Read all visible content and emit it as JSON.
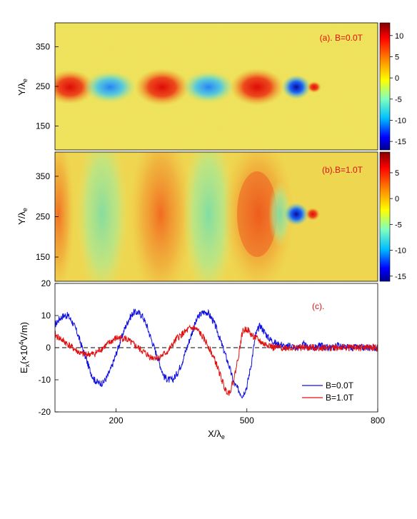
{
  "colors": {
    "field_background": "#f2e45a",
    "series_b0": "#1010e0",
    "series_b1": "#e01010",
    "panel_label": "#e01010",
    "colormap": [
      "#00008f",
      "#0000ff",
      "#00bfff",
      "#7fffbf",
      "#ffff00",
      "#ff7f00",
      "#ff0000",
      "#800000"
    ]
  },
  "panel_a": {
    "label": "(a). B=0.0T",
    "ylabel": "Y/λ",
    "ylabel_sub": "e",
    "yticks": [
      "350",
      "250",
      "150"
    ],
    "colorbar_ticks": [
      "10",
      "5",
      "0",
      "-5",
      "-10",
      "-15"
    ],
    "colorbar_range": [
      -17,
      13
    ]
  },
  "panel_b": {
    "label": "(b).B=1.0T",
    "ylabel": "Y/λ",
    "ylabel_sub": "e",
    "yticks": [
      "350",
      "250",
      "150"
    ],
    "colorbar_ticks": [
      "5",
      "0",
      "-5",
      "-10",
      "-15"
    ],
    "colorbar_range": [
      -16,
      9
    ]
  },
  "chart_data": {
    "type": "line",
    "label": "(c).",
    "xlabel": "X/λ",
    "xlabel_sub": "e",
    "ylabel_main": "E",
    "ylabel_sub": "x",
    "ylabel_paren": "(×10",
    "ylabel_exp": "4",
    "ylabel_unit": "V/m)",
    "xlim": [
      60,
      800
    ],
    "ylim": [
      -20,
      20
    ],
    "xticks": [
      200,
      500,
      800
    ],
    "yticks": [
      -20,
      -10,
      0,
      10,
      20
    ],
    "reference_line": 0,
    "legend_position": "bottom-right",
    "series": [
      {
        "name": "B=0.0T",
        "color": "#1010e0",
        "x": [
          60,
          70,
          80,
          90,
          100,
          110,
          120,
          130,
          140,
          150,
          160,
          170,
          180,
          190,
          200,
          210,
          220,
          230,
          240,
          250,
          260,
          270,
          280,
          290,
          300,
          310,
          320,
          330,
          340,
          350,
          360,
          370,
          380,
          390,
          400,
          410,
          420,
          430,
          440,
          450,
          460,
          470,
          480,
          490,
          500,
          510,
          520,
          530,
          540,
          550,
          560,
          570,
          580,
          590,
          600,
          610,
          620,
          630,
          640,
          650,
          660,
          670,
          680,
          690,
          700,
          710,
          720,
          730,
          740,
          750,
          760,
          770,
          780,
          790,
          800
        ],
        "y": [
          7,
          9,
          10,
          10,
          8,
          5,
          1,
          -3,
          -7,
          -10,
          -11,
          -11,
          -9,
          -6,
          -2,
          2,
          6,
          9,
          11,
          11,
          10,
          7,
          3,
          -1,
          -5,
          -9,
          -10,
          -10,
          -8,
          -5,
          -1,
          3,
          7,
          10,
          11,
          11,
          9,
          6,
          2,
          -2,
          -6,
          -11,
          -13,
          -15,
          -12,
          -5,
          4,
          7,
          5,
          3,
          2,
          1,
          1,
          0,
          1,
          0,
          0,
          1,
          0,
          0,
          0,
          1,
          0,
          0,
          0,
          1,
          0,
          0,
          0,
          0,
          0,
          0,
          0,
          0,
          0
        ]
      },
      {
        "name": "B=1.0T",
        "color": "#e01010",
        "x": [
          60,
          70,
          80,
          90,
          100,
          110,
          120,
          130,
          140,
          150,
          160,
          170,
          180,
          190,
          200,
          210,
          220,
          230,
          240,
          250,
          260,
          270,
          280,
          290,
          300,
          310,
          320,
          330,
          340,
          350,
          360,
          370,
          380,
          390,
          400,
          410,
          420,
          430,
          440,
          450,
          460,
          470,
          480,
          490,
          500,
          510,
          520,
          530,
          540,
          550,
          560,
          570,
          580,
          590,
          600,
          610,
          620,
          630,
          640,
          650,
          660,
          670,
          680,
          690,
          700,
          710,
          720,
          730,
          740,
          750,
          760,
          770,
          780,
          790,
          800
        ],
        "y": [
          4,
          3,
          2,
          1,
          0,
          -1,
          -2,
          -2,
          -2,
          -2,
          -1,
          0,
          1,
          2,
          3,
          3,
          3,
          2,
          1,
          0,
          -1,
          -2,
          -3,
          -3,
          -3,
          -2,
          -1,
          1,
          3,
          4,
          5,
          6,
          6,
          5,
          3,
          1,
          -2,
          -5,
          -9,
          -13,
          -14,
          -10,
          -3,
          5,
          6,
          4,
          3,
          2,
          1,
          1,
          0,
          0,
          0,
          0,
          0,
          0,
          0,
          0,
          0,
          0,
          0,
          0,
          0,
          0,
          0,
          0,
          0,
          0,
          0,
          0,
          0,
          0,
          0,
          0,
          0
        ]
      }
    ]
  }
}
